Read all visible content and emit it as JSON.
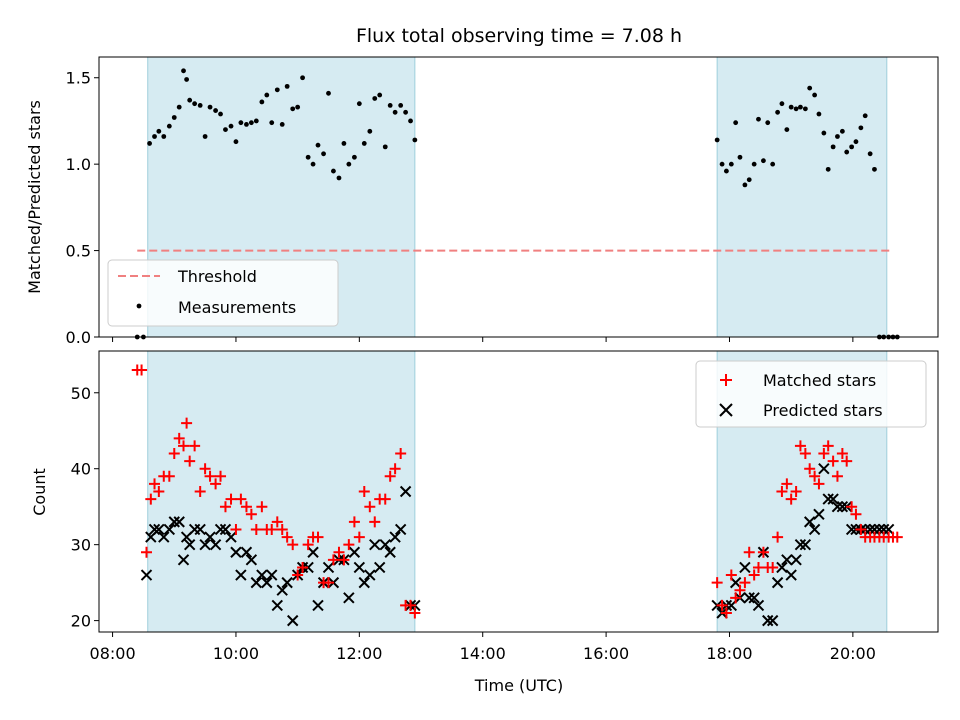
{
  "chart_data": [
    {
      "type": "scatter",
      "panel": "top",
      "title": "Flux total observing time = 7.08 h",
      "xlabel": "",
      "ylabel": "Matched/Predicted stars",
      "xlim": [
        7.78,
        21.38
      ],
      "ylim": [
        0,
        1.62
      ],
      "yticks": [
        0.0,
        0.5,
        1.0,
        1.5
      ],
      "ytick_labels": [
        "0.0",
        "0.5",
        "1.0",
        "1.5"
      ],
      "xticks": [
        8,
        10,
        12,
        14,
        16,
        18,
        20
      ],
      "shaded_intervals": [
        [
          8.57,
          12.9
        ],
        [
          17.8,
          20.55
        ]
      ],
      "threshold": {
        "name": "Threshold",
        "value": 0.5,
        "x_range": [
          8.4,
          20.6
        ],
        "color": "#f08080"
      },
      "legend": {
        "placement": "lower-left",
        "entries": [
          "Threshold",
          "Measurements"
        ]
      },
      "series": [
        {
          "name": "Measurements",
          "marker": "dot",
          "color": "#000000",
          "x": [
            8.4,
            8.5,
            8.6,
            8.68,
            8.75,
            8.83,
            8.92,
            9.0,
            9.08,
            9.15,
            9.2,
            9.25,
            9.33,
            9.42,
            9.5,
            9.58,
            9.67,
            9.75,
            9.83,
            9.92,
            10.0,
            10.08,
            10.17,
            10.25,
            10.33,
            10.42,
            10.5,
            10.58,
            10.67,
            10.75,
            10.83,
            10.92,
            11.0,
            11.08,
            11.17,
            11.25,
            11.33,
            11.42,
            11.5,
            11.58,
            11.67,
            11.75,
            11.83,
            11.92,
            12.0,
            12.08,
            12.17,
            12.25,
            12.33,
            12.42,
            12.5,
            12.58,
            12.67,
            12.75,
            12.83,
            12.9,
            17.8,
            17.88,
            17.95,
            18.03,
            18.1,
            18.17,
            18.25,
            18.32,
            18.4,
            18.47,
            18.55,
            18.62,
            18.7,
            18.78,
            18.85,
            18.93,
            19.0,
            19.08,
            19.15,
            19.23,
            19.3,
            19.38,
            19.45,
            19.53,
            19.6,
            19.68,
            19.75,
            19.83,
            19.9,
            19.98,
            20.05,
            20.13,
            20.2,
            20.28,
            20.35,
            20.43,
            20.5,
            20.58,
            20.65,
            20.72
          ],
          "y": [
            0.0,
            0.0,
            1.12,
            1.16,
            1.19,
            1.16,
            1.22,
            1.27,
            1.33,
            1.54,
            1.49,
            1.37,
            1.35,
            1.34,
            1.16,
            1.33,
            1.31,
            1.29,
            1.2,
            1.22,
            1.13,
            1.24,
            1.23,
            1.24,
            1.25,
            1.36,
            1.4,
            1.24,
            1.43,
            1.23,
            1.45,
            1.32,
            1.33,
            1.5,
            1.04,
            1.0,
            1.11,
            1.06,
            1.41,
            0.96,
            0.92,
            1.12,
            1.0,
            1.04,
            1.35,
            1.12,
            1.19,
            1.38,
            1.4,
            1.1,
            1.34,
            1.3,
            1.34,
            1.3,
            1.25,
            1.14,
            1.14,
            1.0,
            0.96,
            1.0,
            1.24,
            1.04,
            0.88,
            0.91,
            1.0,
            1.26,
            1.02,
            1.24,
            1.0,
            1.3,
            1.35,
            1.2,
            1.33,
            1.32,
            1.33,
            1.32,
            1.44,
            1.4,
            1.29,
            1.18,
            0.97,
            1.1,
            1.16,
            1.19,
            1.07,
            1.1,
            1.13,
            1.21,
            1.28,
            1.06,
            0.97,
            0.0,
            0.0,
            0.0,
            0.0,
            0.0
          ]
        }
      ]
    },
    {
      "type": "scatter",
      "panel": "bottom",
      "title": "",
      "xlabel": "Time (UTC)",
      "ylabel": "Count",
      "xlim": [
        7.78,
        21.38
      ],
      "ylim": [
        18.5,
        55.5
      ],
      "yticks": [
        20,
        30,
        40,
        50
      ],
      "ytick_labels": [
        "20",
        "30",
        "40",
        "50"
      ],
      "xticks": [
        8,
        10,
        12,
        14,
        16,
        18,
        20
      ],
      "xtick_labels": [
        "08:00",
        "10:00",
        "12:00",
        "14:00",
        "16:00",
        "18:00",
        "20:00"
      ],
      "shaded_intervals": [
        [
          8.57,
          12.9
        ],
        [
          17.8,
          20.55
        ]
      ],
      "legend": {
        "placement": "top-right",
        "entries": [
          "Matched stars",
          "Predicted stars"
        ]
      },
      "series": [
        {
          "name": "Matched stars",
          "marker": "plus",
          "color": "#ff0000",
          "x": [
            8.4,
            8.47,
            8.55,
            8.62,
            8.68,
            8.75,
            8.83,
            8.92,
            9.0,
            9.08,
            9.15,
            9.2,
            9.25,
            9.33,
            9.42,
            9.5,
            9.58,
            9.67,
            9.75,
            9.83,
            9.92,
            10.0,
            10.08,
            10.17,
            10.25,
            10.33,
            10.42,
            10.5,
            10.58,
            10.67,
            10.75,
            10.83,
            10.92,
            11.0,
            11.08,
            11.17,
            11.25,
            11.33,
            11.42,
            11.5,
            11.58,
            11.67,
            11.75,
            11.83,
            11.92,
            12.0,
            12.08,
            12.17,
            12.25,
            12.33,
            12.42,
            12.5,
            12.58,
            12.67,
            12.75,
            12.83,
            12.9,
            17.8,
            17.88,
            17.95,
            18.03,
            18.1,
            18.17,
            18.25,
            18.32,
            18.4,
            18.47,
            18.55,
            18.62,
            18.7,
            18.78,
            18.85,
            18.93,
            19.0,
            19.08,
            19.15,
            19.23,
            19.3,
            19.38,
            19.45,
            19.53,
            19.6,
            19.68,
            19.75,
            19.83,
            19.9,
            19.98,
            20.05,
            20.13,
            20.2,
            20.28,
            20.35,
            20.43,
            20.5,
            20.58,
            20.65,
            20.72
          ],
          "y": [
            53,
            53,
            29,
            36,
            38,
            37,
            39,
            39,
            42,
            44,
            43,
            46,
            41,
            43,
            37,
            40,
            39,
            38,
            39,
            35,
            36,
            32,
            36,
            35,
            34,
            32,
            35,
            32,
            32,
            33,
            32,
            31,
            30,
            26,
            27,
            30,
            31,
            31,
            25,
            25,
            28,
            29,
            28,
            30,
            33,
            31,
            37,
            35,
            33,
            36,
            36,
            39,
            40,
            42,
            22,
            22,
            21,
            25,
            22,
            21,
            26,
            23,
            24,
            25,
            29,
            26,
            27,
            29,
            27,
            27,
            31,
            37,
            38,
            36,
            37,
            43,
            42,
            40,
            39,
            38,
            42,
            43,
            41,
            39,
            42,
            41,
            35,
            34,
            32,
            31,
            31,
            31,
            31,
            31,
            31,
            31,
            31
          ]
        },
        {
          "name": "Predicted stars",
          "marker": "cross",
          "color": "#000000",
          "x": [
            8.55,
            8.62,
            8.68,
            8.75,
            8.83,
            8.92,
            9.0,
            9.08,
            9.15,
            9.2,
            9.25,
            9.33,
            9.42,
            9.5,
            9.58,
            9.67,
            9.75,
            9.83,
            9.92,
            10.0,
            10.08,
            10.17,
            10.25,
            10.33,
            10.42,
            10.5,
            10.58,
            10.67,
            10.75,
            10.83,
            10.92,
            11.0,
            11.08,
            11.17,
            11.25,
            11.33,
            11.42,
            11.5,
            11.58,
            11.67,
            11.75,
            11.83,
            11.92,
            12.0,
            12.08,
            12.17,
            12.25,
            12.33,
            12.42,
            12.5,
            12.58,
            12.67,
            12.75,
            12.83,
            12.9,
            17.8,
            17.88,
            17.95,
            18.03,
            18.1,
            18.17,
            18.25,
            18.32,
            18.4,
            18.47,
            18.55,
            18.62,
            18.7,
            18.78,
            18.85,
            18.93,
            19.0,
            19.08,
            19.15,
            19.23,
            19.3,
            19.38,
            19.45,
            19.53,
            19.6,
            19.68,
            19.75,
            19.83,
            19.9,
            19.98,
            20.05,
            20.13,
            20.2,
            20.28,
            20.35,
            20.43,
            20.5,
            20.58
          ],
          "y": [
            26,
            31,
            32,
            32,
            31,
            32,
            33,
            33,
            28,
            31,
            30,
            32,
            32,
            30,
            31,
            30,
            32,
            32,
            31,
            29,
            26,
            29,
            28,
            25,
            26,
            25,
            26,
            22,
            24,
            25,
            20,
            26,
            27,
            27,
            29,
            22,
            25,
            27,
            25,
            28,
            28,
            23,
            29,
            27,
            25,
            26,
            30,
            27,
            30,
            29,
            31,
            32,
            37,
            22,
            22,
            22,
            21,
            22,
            22,
            25,
            23,
            27,
            23,
            23,
            22,
            29,
            20,
            20,
            25,
            27,
            28,
            26,
            28,
            30,
            30,
            33,
            32,
            34,
            40,
            36,
            36,
            35,
            35,
            35,
            32,
            32,
            32,
            32,
            32,
            32,
            32,
            32,
            32
          ]
        }
      ]
    }
  ]
}
